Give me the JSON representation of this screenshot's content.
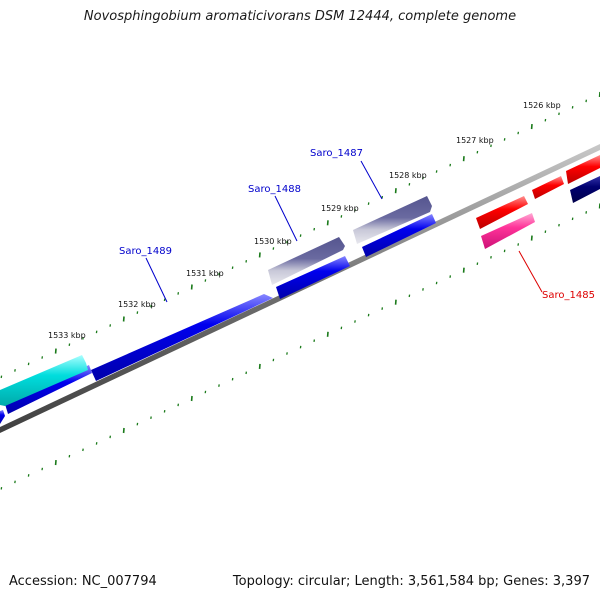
{
  "title": "Novosphingobium aromaticivorans DSM 12444, complete genome",
  "accession_text": "Accession: NC_007794",
  "summary_text": "Topology: circular; Length: 3,561,584 bp; Genes: 3,397",
  "kbp_ticks": [
    "1526 kbp",
    "1527 kbp",
    "1528 kbp",
    "1529 kbp",
    "1530 kbp",
    "1531 kbp",
    "1532 kbp",
    "1533 kbp"
  ],
  "gene_labels": [
    {
      "text": "Saro_1487",
      "color": "#0000cc"
    },
    {
      "text": "Saro_1488",
      "color": "#0000cc"
    },
    {
      "text": "Saro_1489",
      "color": "#0000cc"
    },
    {
      "text": "Saro_1485",
      "color": "#dd0000"
    }
  ],
  "colors": {
    "backbone": "#808080",
    "tick": "#1a7a1a",
    "forward_gene": "#0000ee",
    "dark_gene": "#3a3a8a",
    "cyan_gene": "#00cccc",
    "red_gene": "#ff0000",
    "pink_gene": "#ff3399",
    "navy_gene": "#000070"
  }
}
